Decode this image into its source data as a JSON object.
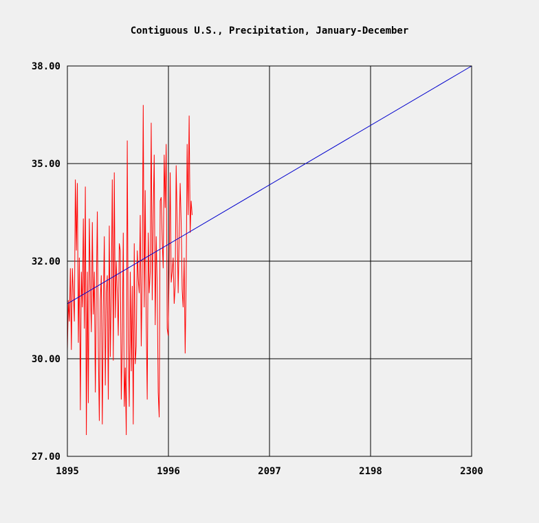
{
  "chart_data": {
    "type": "line",
    "title": "Contiguous U.S., Precipitation, January-December",
    "xlabel": "",
    "ylabel": "",
    "xlim": [
      1895,
      2300
    ],
    "ylim": [
      27.0,
      38.0
    ],
    "x_ticks": [
      "1895",
      "1996",
      "2097",
      "2198",
      "2300"
    ],
    "y_ticks": [
      "27.00",
      "30.00",
      "32.00",
      "35.00",
      "38.00"
    ],
    "grid": true,
    "series": [
      {
        "color": "#ff0000",
        "x": [
          1895,
          1896,
          1897,
          1898,
          1899,
          1900,
          1901,
          1902,
          1903,
          1904,
          1905,
          1906,
          1907,
          1908,
          1909,
          1910,
          1911,
          1912,
          1913,
          1914,
          1915,
          1916,
          1917,
          1918,
          1919,
          1920,
          1921,
          1922,
          1923,
          1924,
          1925,
          1926,
          1927,
          1928,
          1929,
          1930,
          1931,
          1932,
          1933,
          1934,
          1935,
          1936,
          1937,
          1938,
          1939,
          1940,
          1941,
          1942,
          1943,
          1944,
          1945,
          1946,
          1947,
          1948,
          1949,
          1950,
          1951,
          1952,
          1953,
          1954,
          1955,
          1956,
          1957,
          1958,
          1959,
          1960,
          1961,
          1962,
          1963,
          1964,
          1965,
          1966,
          1967,
          1968,
          1969,
          1970,
          1971,
          1972,
          1973,
          1974,
          1975,
          1976,
          1977,
          1978,
          1979,
          1980,
          1981,
          1982,
          1983,
          1984,
          1985,
          1986,
          1987,
          1988,
          1989,
          1990,
          1991,
          1992,
          1993,
          1994,
          1995,
          1996,
          1997,
          1998,
          1999,
          2000,
          2001,
          2002,
          2003,
          2004,
          2005,
          2006,
          2007,
          2008,
          2009,
          2010,
          2011,
          2012,
          2013,
          2014,
          2015,
          2016,
          2017,
          2018,
          2019,
          2020
        ],
        "y": [
          30.0,
          31.4,
          30.8,
          32.3,
          30.0,
          32.3,
          31.6,
          30.8,
          34.8,
          32.8,
          34.7,
          30.2,
          32.6,
          28.3,
          32.2,
          31.2,
          33.7,
          30.6,
          34.6,
          27.6,
          32.2,
          28.5,
          33.7,
          31.8,
          30.5,
          33.6,
          31.0,
          32.2,
          28.8,
          31.6,
          33.9,
          30.0,
          28.0,
          31.4,
          32.1,
          27.9,
          31.2,
          33.2,
          29.0,
          31.6,
          32.1,
          28.6,
          33.5,
          29.8,
          31.6,
          34.8,
          29.7,
          35.0,
          30.9,
          32.5,
          31.6,
          30.4,
          33.0,
          32.8,
          28.6,
          30.2,
          33.3,
          28.4,
          29.5,
          27.6,
          35.9,
          30.2,
          28.4,
          32.2,
          29.4,
          31.8,
          27.9,
          33.0,
          29.6,
          30.1,
          32.8,
          32.0,
          31.6,
          33.8,
          30.1,
          32.2,
          36.9,
          31.2,
          34.5,
          30.8,
          28.6,
          33.3,
          31.6,
          32.2,
          36.4,
          31.4,
          33.8,
          35.5,
          30.7,
          33.2,
          31.8,
          28.8,
          28.1,
          34.2,
          34.3,
          33.1,
          32.3,
          35.5,
          34.0,
          35.8,
          30.6,
          30.4,
          32.3,
          35.0,
          31.9,
          32.2,
          32.6,
          31.3,
          31.8,
          35.2,
          33.5,
          31.6,
          33.2,
          34.7,
          33.6,
          31.7,
          31.2,
          32.6,
          29.9,
          32.0,
          35.8,
          33.8,
          36.6,
          33.3,
          34.2,
          33.8
        ]
      },
      {
        "color": "#0000cc",
        "x": [
          1895,
          2300
        ],
        "y": [
          31.3,
          38.0
        ]
      }
    ]
  }
}
